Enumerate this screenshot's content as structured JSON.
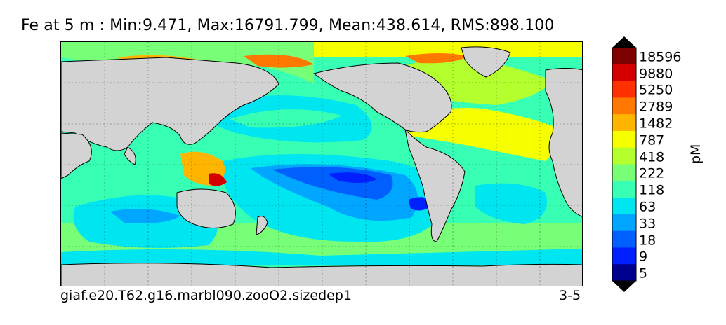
{
  "chart_data": {
    "type": "heatmap",
    "title": "Fe at 5 m : Min:9.471, Max:16791.799, Mean:438.614, RMS:898.100",
    "variable": "Fe",
    "depth": "5 m",
    "statistics": {
      "min": 9.471,
      "max": 16791.799,
      "mean": 438.614,
      "rms": 898.1
    },
    "case_name": "giaf.e20.T62.g16.marbl090.zooO2.sizedep1",
    "period": "3-5",
    "colorbar": {
      "unit": "pM",
      "labels": [
        "18596",
        "9880",
        "5250",
        "2789",
        "1482",
        "787",
        "418",
        "222",
        "118",
        "63",
        "33",
        "18",
        "9",
        "5"
      ],
      "colors": [
        "#7f0000",
        "#d40000",
        "#ff3000",
        "#ff7800",
        "#ffb400",
        "#f5ff00",
        "#b4ff2e",
        "#78ff78",
        "#37ffb4",
        "#00e6f0",
        "#00a6ff",
        "#0060ff",
        "#0020ff",
        "#00008f"
      ],
      "extend": "both",
      "extend_max_color": "#000000",
      "extend_min_color": "#000000"
    },
    "grid": true,
    "land_color": "#d3d3d3"
  }
}
